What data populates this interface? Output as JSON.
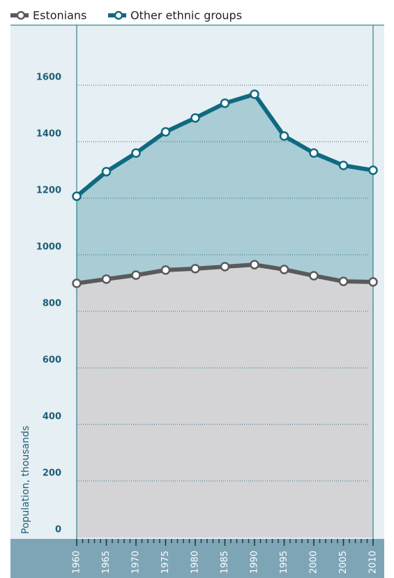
{
  "chart_data": {
    "type": "stacked_area",
    "x": [
      1960,
      1965,
      1970,
      1975,
      1980,
      1985,
      1990,
      1995,
      2000,
      2005,
      2010
    ],
    "xlim": [
      1960,
      2010
    ],
    "series": [
      {
        "name": "Estonians",
        "color": "#5a5a5c",
        "fill": "#d4d4d6",
        "values": [
          899,
          914,
          928,
          946,
          951,
          958,
          965,
          948,
          926,
          906,
          904
        ]
      },
      {
        "name": "Other ethnic groups",
        "color": "#0f6a80",
        "fill": "#a9ccd5",
        "values": [
          308,
          380,
          432,
          489,
          533,
          578,
          603,
          472,
          434,
          410,
          395
        ]
      }
    ],
    "ylabel": "Population, thousands",
    "ylim": [
      0,
      1800
    ],
    "yticks": [
      0,
      200,
      400,
      600,
      800,
      1000,
      1200,
      1400,
      1600
    ],
    "grid": true
  }
}
